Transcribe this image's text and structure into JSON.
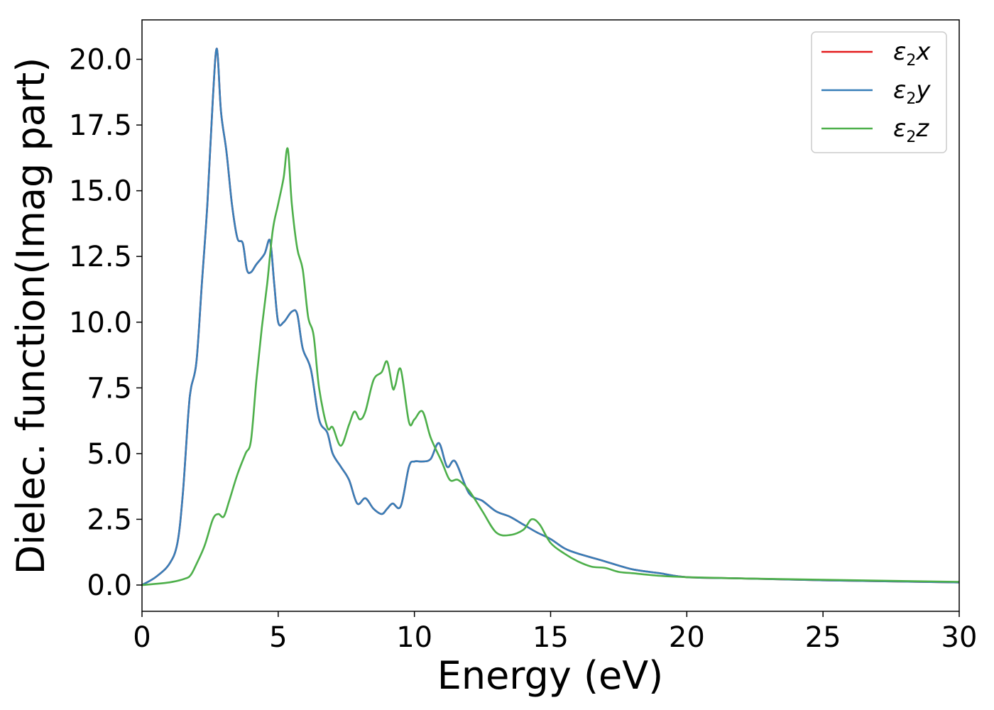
{
  "chart_data": {
    "type": "line",
    "xlabel": "Energy (eV)",
    "ylabel": "Dielec. function(Imag part)",
    "xlim": [
      0,
      30
    ],
    "ylim": [
      -1.0,
      21.5
    ],
    "xticks": [
      0,
      5,
      10,
      15,
      20,
      25,
      30
    ],
    "xtick_labels": [
      "0",
      "5",
      "10",
      "15",
      "20",
      "25",
      "30"
    ],
    "yticks": [
      0.0,
      2.5,
      5.0,
      7.5,
      10.0,
      12.5,
      15.0,
      17.5,
      20.0
    ],
    "ytick_labels": [
      "0.0",
      "2.5",
      "5.0",
      "7.5",
      "10.0",
      "12.5",
      "15.0",
      "17.5",
      "20.0"
    ],
    "grid": false,
    "legend_position": "top-right",
    "legend": [
      {
        "symbol": "ε",
        "sub": "2",
        "axis": "x",
        "color": "#e41a1c"
      },
      {
        "symbol": "ε",
        "sub": "2",
        "axis": "y",
        "color": "#377eb8"
      },
      {
        "symbol": "ε",
        "sub": "2",
        "axis": "z",
        "color": "#4daf4a"
      }
    ],
    "series": [
      {
        "color": "#e41a1c",
        "x": [
          0,
          0.5,
          1.0,
          1.3,
          1.5,
          1.7,
          1.8,
          2.0,
          2.2,
          2.4,
          2.6,
          2.75,
          2.9,
          3.1,
          3.3,
          3.5,
          3.7,
          3.85,
          4.0,
          4.2,
          4.5,
          4.7,
          4.85,
          5.0,
          5.2,
          5.5,
          5.7,
          5.9,
          6.2,
          6.5,
          6.8,
          7.0,
          7.3,
          7.6,
          7.9,
          8.2,
          8.5,
          8.8,
          9.0,
          9.2,
          9.5,
          9.8,
          10.0,
          10.3,
          10.6,
          10.9,
          11.2,
          11.5,
          12.0,
          12.5,
          13.0,
          13.5,
          14.0,
          14.5,
          15.0,
          15.5,
          16.0,
          17.0,
          18.0,
          19.0,
          20.0,
          22.0,
          25.0,
          30.0
        ],
        "y": [
          0,
          0.3,
          0.8,
          1.6,
          3.5,
          6.5,
          7.5,
          8.5,
          11.5,
          14.5,
          18.5,
          20.4,
          18.0,
          16.5,
          14.5,
          13.2,
          13.0,
          12.0,
          11.9,
          12.2,
          12.6,
          13.1,
          11.5,
          10.0,
          10.0,
          10.4,
          10.3,
          9.0,
          8.2,
          6.3,
          5.8,
          5.0,
          4.5,
          4.0,
          3.1,
          3.3,
          2.9,
          2.7,
          2.9,
          3.1,
          3.0,
          4.5,
          4.7,
          4.7,
          4.8,
          5.4,
          4.5,
          4.7,
          3.5,
          3.2,
          2.8,
          2.6,
          2.3,
          2.0,
          1.75,
          1.4,
          1.2,
          0.9,
          0.6,
          0.45,
          0.3,
          0.25,
          0.18,
          0.1
        ]
      },
      {
        "color": "#377eb8",
        "x": [
          0,
          0.5,
          1.0,
          1.3,
          1.5,
          1.7,
          1.8,
          2.0,
          2.2,
          2.4,
          2.6,
          2.75,
          2.9,
          3.1,
          3.3,
          3.5,
          3.7,
          3.85,
          4.0,
          4.2,
          4.5,
          4.7,
          4.85,
          5.0,
          5.2,
          5.5,
          5.7,
          5.9,
          6.2,
          6.5,
          6.8,
          7.0,
          7.3,
          7.6,
          7.9,
          8.2,
          8.5,
          8.8,
          9.0,
          9.2,
          9.5,
          9.8,
          10.0,
          10.3,
          10.6,
          10.9,
          11.2,
          11.5,
          12.0,
          12.5,
          13.0,
          13.5,
          14.0,
          14.5,
          15.0,
          15.5,
          16.0,
          17.0,
          18.0,
          19.0,
          20.0,
          22.0,
          25.0,
          30.0
        ],
        "y": [
          0,
          0.3,
          0.8,
          1.6,
          3.5,
          6.5,
          7.5,
          8.5,
          11.5,
          14.5,
          18.5,
          20.4,
          18.0,
          16.5,
          14.5,
          13.2,
          13.0,
          12.0,
          11.9,
          12.2,
          12.6,
          13.1,
          11.5,
          10.0,
          10.0,
          10.4,
          10.3,
          9.0,
          8.2,
          6.3,
          5.8,
          5.0,
          4.5,
          4.0,
          3.1,
          3.3,
          2.9,
          2.7,
          2.9,
          3.1,
          3.0,
          4.5,
          4.7,
          4.7,
          4.8,
          5.4,
          4.5,
          4.7,
          3.5,
          3.2,
          2.8,
          2.6,
          2.3,
          2.0,
          1.75,
          1.4,
          1.2,
          0.9,
          0.6,
          0.45,
          0.3,
          0.25,
          0.18,
          0.1
        ]
      },
      {
        "color": "#4daf4a",
        "x": [
          0,
          1.0,
          1.6,
          1.8,
          2.0,
          2.3,
          2.6,
          2.8,
          3.0,
          3.2,
          3.5,
          3.8,
          4.0,
          4.2,
          4.4,
          4.6,
          4.8,
          5.0,
          5.2,
          5.35,
          5.5,
          5.7,
          5.9,
          6.1,
          6.3,
          6.5,
          6.8,
          7.0,
          7.3,
          7.6,
          7.8,
          8.0,
          8.2,
          8.5,
          8.8,
          9.0,
          9.2,
          9.3,
          9.5,
          9.8,
          10.0,
          10.3,
          10.6,
          11.0,
          11.3,
          11.6,
          12.0,
          12.5,
          13.0,
          13.5,
          14.0,
          14.3,
          14.6,
          15.0,
          15.5,
          16.0,
          16.5,
          17.0,
          17.5,
          18.0,
          19.0,
          20.0,
          22.0,
          25.0,
          30.0
        ],
        "y": [
          0,
          0.1,
          0.25,
          0.4,
          0.8,
          1.5,
          2.5,
          2.7,
          2.6,
          3.2,
          4.2,
          5.0,
          5.5,
          7.8,
          9.8,
          11.5,
          13.5,
          14.5,
          15.5,
          16.6,
          14.5,
          12.8,
          12.0,
          10.2,
          9.5,
          7.5,
          6.0,
          6.0,
          5.3,
          6.1,
          6.6,
          6.3,
          6.6,
          7.8,
          8.1,
          8.5,
          7.5,
          7.6,
          8.2,
          6.2,
          6.3,
          6.6,
          5.6,
          4.7,
          4.0,
          4.0,
          3.6,
          2.8,
          2.0,
          1.9,
          2.1,
          2.5,
          2.3,
          1.6,
          1.2,
          0.9,
          0.7,
          0.65,
          0.5,
          0.45,
          0.35,
          0.3,
          0.25,
          0.2,
          0.12
        ]
      }
    ]
  }
}
